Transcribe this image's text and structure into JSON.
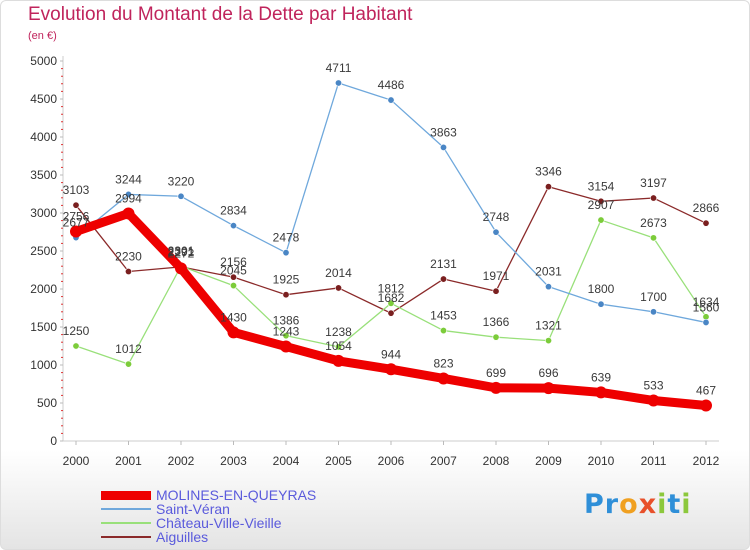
{
  "title": "Evolution du Montant de la Dette par Habitant",
  "subtitle": "(en €)",
  "logo": {
    "letters": [
      {
        "ch": "P",
        "color": "#2f8fd8"
      },
      {
        "ch": "r",
        "color": "#2f8fd8"
      },
      {
        "ch": "o",
        "color": "#f0a020"
      },
      {
        "ch": "x",
        "color": "#e8502a"
      },
      {
        "ch": "i",
        "color": "#8cc83c"
      },
      {
        "ch": "t",
        "color": "#2f8fd8"
      },
      {
        "ch": "i",
        "color": "#8cc83c"
      }
    ]
  },
  "chart_data": {
    "type": "line",
    "title": "Evolution du Montant de la Dette par Habitant",
    "subtitle": "(en €)",
    "xlabel": "",
    "ylabel": "",
    "categories": [
      "2000",
      "2001",
      "2002",
      "2003",
      "2004",
      "2005",
      "2006",
      "2007",
      "2008",
      "2009",
      "2010",
      "2011",
      "2012"
    ],
    "ylim": [
      0,
      5000
    ],
    "yticks": [
      0,
      500,
      1000,
      1500,
      2000,
      2500,
      3000,
      3500,
      4000,
      4500,
      5000
    ],
    "grid": false,
    "legend_position": "bottom-left",
    "series": [
      {
        "name": "MOLINES-EN-QUEYRAS",
        "color": "#ee0000",
        "marker": "#ee0000",
        "values": [
          2756,
          2994,
          2272,
          1430,
          1243,
          1054,
          944,
          823,
          699,
          696,
          639,
          533,
          467
        ],
        "labels": [
          "2756",
          "2994",
          "2272",
          "1430",
          "1243",
          "1054",
          "944",
          "823",
          "699",
          "696",
          "639",
          "533",
          "467"
        ]
      },
      {
        "name": "Saint-Véran",
        "color": "#6fa8dc",
        "marker": "#4a86c5",
        "values": [
          2677,
          3244,
          3220,
          2834,
          2478,
          4711,
          4486,
          3863,
          2748,
          2031,
          1800,
          1700,
          1560
        ],
        "labels": [
          "2677",
          "3244",
          "3220",
          "2834",
          "2478",
          "4711",
          "4486",
          "3863",
          "2748",
          "2031",
          "1800",
          "1700",
          "1560"
        ]
      },
      {
        "name": "Château-Ville-Vieille",
        "color": "#99e07a",
        "marker": "#7ccc3a",
        "values": [
          1250,
          1012,
          2301,
          2045,
          1386,
          1238,
          1812,
          1453,
          1366,
          1321,
          2907,
          2673,
          1634
        ],
        "labels": [
          "1250",
          "1012",
          "2301",
          "2045",
          "1386",
          "1238",
          "1812",
          "1453",
          "1366",
          "1321",
          "2907",
          "2673",
          "1634"
        ]
      },
      {
        "name": "Aiguilles",
        "color": "#8b2a2a",
        "marker": "#7a1f1f",
        "values": [
          3103,
          2230,
          2291,
          2156,
          1925,
          2014,
          1682,
          2131,
          1971,
          3346,
          3154,
          3197,
          2866
        ],
        "labels": [
          "3103",
          "2230",
          "2291",
          "2156",
          "1925",
          "2014",
          "1682",
          "2131",
          "1971",
          "3346",
          "3154",
          "3197",
          "2866"
        ]
      }
    ]
  }
}
